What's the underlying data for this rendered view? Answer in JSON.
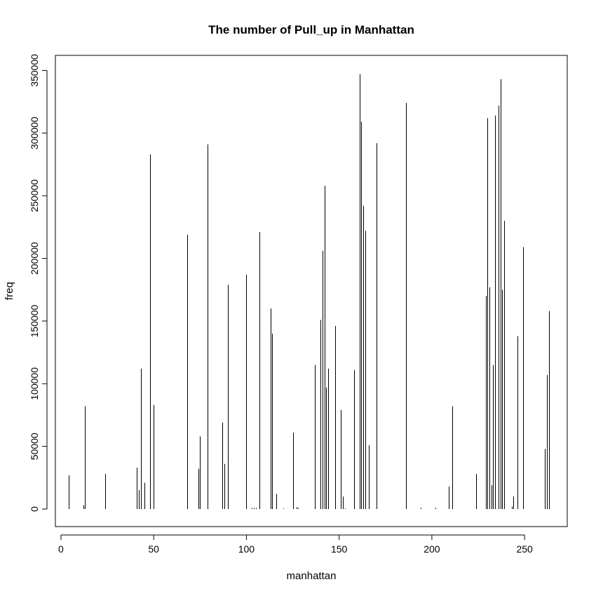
{
  "chart_data": {
    "type": "bar",
    "title": "The number of Pull_up in Manhattan",
    "xlabel": "manhattan",
    "ylabel": "freq",
    "xlim": [
      -3,
      273
    ],
    "ylim": [
      -14000,
      362000
    ],
    "xticks": [
      0,
      50,
      100,
      150,
      200,
      250
    ],
    "yticks": [
      0,
      50000,
      100000,
      150000,
      200000,
      250000,
      300000,
      350000
    ],
    "grid": false,
    "x": [
      4,
      12,
      13,
      24,
      41,
      42,
      43,
      45,
      48,
      50,
      68,
      74,
      75,
      79,
      87,
      88,
      90,
      100,
      103,
      104,
      105,
      107,
      113,
      114,
      116,
      120,
      125,
      127,
      128,
      137,
      140,
      141,
      142,
      143,
      144,
      148,
      151,
      152,
      153,
      158,
      161,
      162,
      163,
      164,
      166,
      170,
      186,
      194,
      202,
      209,
      211,
      224,
      229,
      230,
      231,
      232,
      233,
      234,
      236,
      237,
      238,
      239,
      243,
      244,
      246,
      249,
      261,
      262,
      263
    ],
    "values": [
      27000,
      3000,
      82000,
      28000,
      33000,
      15000,
      112000,
      21000,
      283000,
      83000,
      219000,
      32000,
      58000,
      291000,
      69000,
      36000,
      179000,
      187000,
      800,
      800,
      800,
      221000,
      160000,
      140000,
      12000,
      500,
      61000,
      1500,
      800,
      115000,
      151000,
      206000,
      258000,
      97000,
      112000,
      146000,
      79000,
      10000,
      500,
      111000,
      347000,
      309000,
      242000,
      222000,
      51000,
      292000,
      324000,
      1000,
      1000,
      18000,
      82000,
      28000,
      170000,
      312000,
      177000,
      19000,
      115000,
      314000,
      322000,
      343000,
      175000,
      230000,
      2000,
      10000,
      138000,
      209000,
      48000,
      107000,
      158000
    ]
  }
}
